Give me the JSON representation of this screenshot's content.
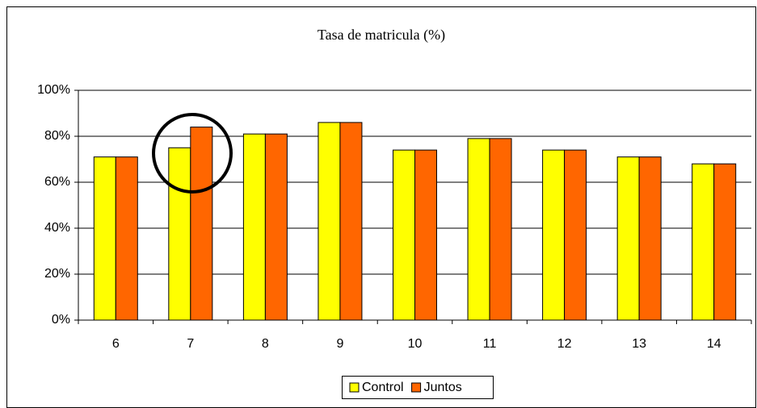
{
  "chart_data": {
    "type": "bar",
    "title": "Tasa de matricula (%)",
    "categories": [
      "6",
      "7",
      "8",
      "9",
      "10",
      "11",
      "12",
      "13",
      "14"
    ],
    "series": [
      {
        "name": "Control",
        "color": "#ffff00",
        "values": [
          71,
          75,
          81,
          86,
          74,
          79,
          74,
          71,
          68
        ]
      },
      {
        "name": "Juntos",
        "color": "#ff6600",
        "values": [
          71,
          84,
          81,
          86,
          74,
          79,
          74,
          71,
          68
        ]
      }
    ],
    "ylim": [
      0,
      100
    ],
    "yticks": [
      {
        "value": 0,
        "label": "0%"
      },
      {
        "value": 20,
        "label": "20%"
      },
      {
        "value": 40,
        "label": "40%"
      },
      {
        "value": 60,
        "label": "60%"
      },
      {
        "value": 80,
        "label": "80%"
      },
      {
        "value": 100,
        "label": "100%"
      }
    ],
    "grid": true,
    "legend": "bottom"
  }
}
